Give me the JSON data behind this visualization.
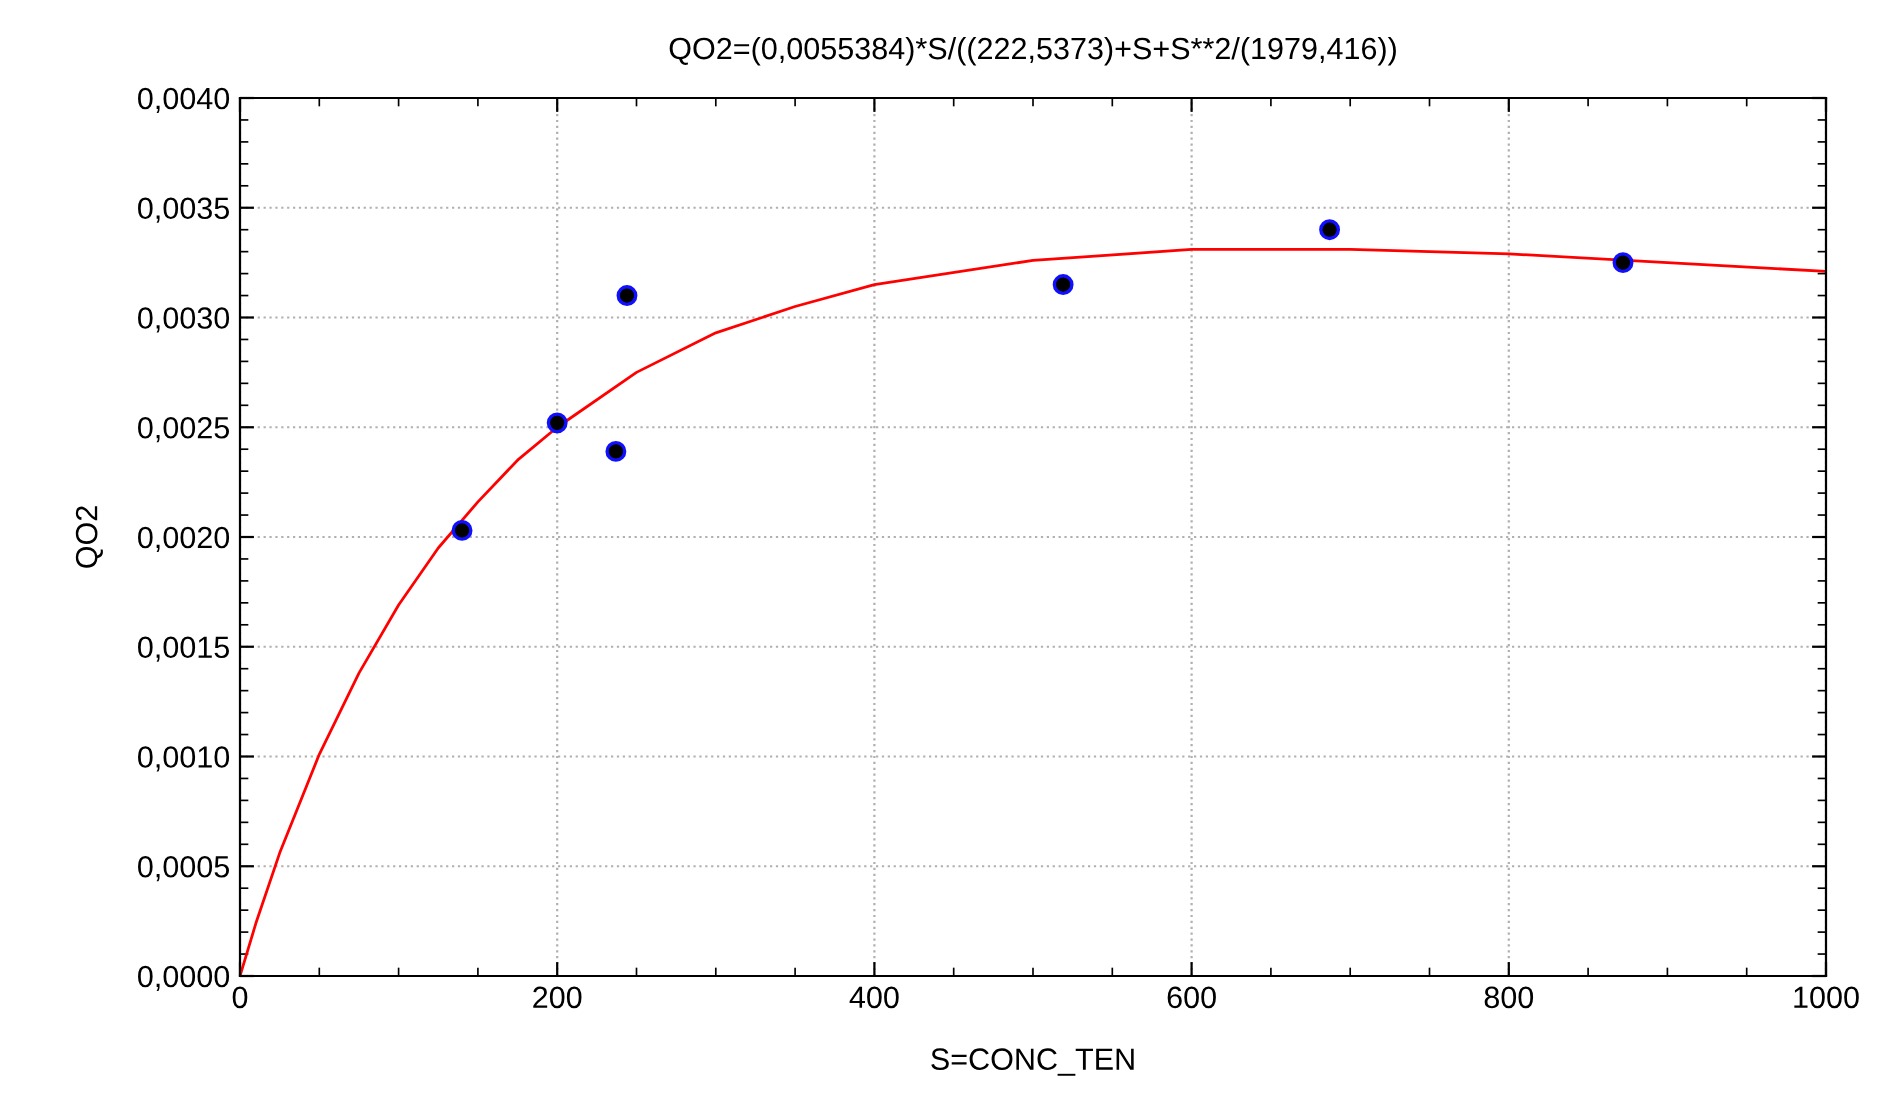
{
  "chart_data": {
    "type": "scatter",
    "title": "QO2=(0,0055384)*S/((222,5373)+S+S**2/(1979,416))",
    "xlabel": "S=CONC_TEN",
    "ylabel": "QO2",
    "series": [
      {
        "color": "#000000",
        "x": [
          140,
          200,
          237,
          244,
          519,
          687,
          872
        ],
        "values": [
          0.00203,
          0.00252,
          0.00239,
          0.0031,
          0.00315,
          0.0034,
          0.00325
        ]
      },
      {
        "type": "line",
        "color": "#ff0000",
        "marker": "none",
        "x": [
          0,
          10,
          25,
          50,
          75,
          100,
          125,
          150,
          175,
          200,
          250,
          300,
          350,
          400,
          500,
          600,
          700,
          800,
          900,
          1000
        ],
        "values": [
          0,
          0.00024,
          0.00056,
          0.00101,
          0.00138,
          0.00169,
          0.00195,
          0.00216,
          0.00235,
          0.0025,
          0.00275,
          0.00293,
          0.00305,
          0.00315,
          0.00326,
          0.00331,
          0.00331,
          0.00329,
          0.00325,
          0.00321
        ]
      }
    ],
    "marker": "circle",
    "line_style": "solid",
    "xlim": [
      0,
      1000
    ],
    "xticks": [
      0,
      200,
      400,
      600,
      800,
      1000
    ],
    "ylim": [
      0,
      0.004
    ],
    "yticks": [
      {
        "value": 0,
        "label": "0,0000"
      },
      {
        "value": 0.0005,
        "label": "0,0005"
      },
      {
        "value": 0.001,
        "label": "0,0010"
      },
      {
        "value": 0.0015,
        "label": "0,0015"
      },
      {
        "value": 0.002,
        "label": "0,0020"
      },
      {
        "value": 0.0025,
        "label": "0,0025"
      },
      {
        "value": 0.003,
        "label": "0,0030"
      },
      {
        "value": 0.0035,
        "label": "0,0035"
      },
      {
        "value": 0.004,
        "label": "0,0040"
      }
    ],
    "grid": true
  }
}
